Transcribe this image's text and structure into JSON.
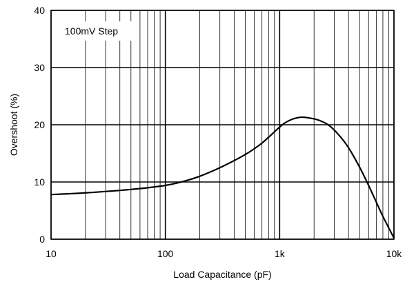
{
  "chart_data": {
    "type": "line",
    "xlabel": "Load Capacitance (pF)",
    "ylabel": "Overshoot (%)",
    "annotation": "100mV Step",
    "xscale": "log",
    "xlim": [
      10,
      10000
    ],
    "ylim": [
      0,
      40
    ],
    "grid": true,
    "x_ticks": [
      {
        "value": 10,
        "label": "10"
      },
      {
        "value": 100,
        "label": "100"
      },
      {
        "value": 1000,
        "label": "1k"
      },
      {
        "value": 10000,
        "label": "10k"
      }
    ],
    "y_ticks": [
      {
        "value": 0,
        "label": "0"
      },
      {
        "value": 10,
        "label": "10"
      },
      {
        "value": 20,
        "label": "20"
      },
      {
        "value": 30,
        "label": "30"
      },
      {
        "value": 40,
        "label": "40"
      }
    ],
    "series": [
      {
        "x": [
          10,
          20,
          50,
          100,
          150,
          200,
          300,
          500,
          700,
          1000,
          1200,
          1500,
          1800,
          2200,
          2700,
          3300,
          4000,
          5000,
          6000,
          7000,
          8000,
          10000
        ],
        "y": [
          7.8,
          8.1,
          8.7,
          9.4,
          10.2,
          11.0,
          12.5,
          14.8,
          16.8,
          19.6,
          20.7,
          21.3,
          21.2,
          20.8,
          19.9,
          18.2,
          16.0,
          12.6,
          9.4,
          6.5,
          4.0,
          0.2
        ]
      }
    ]
  }
}
